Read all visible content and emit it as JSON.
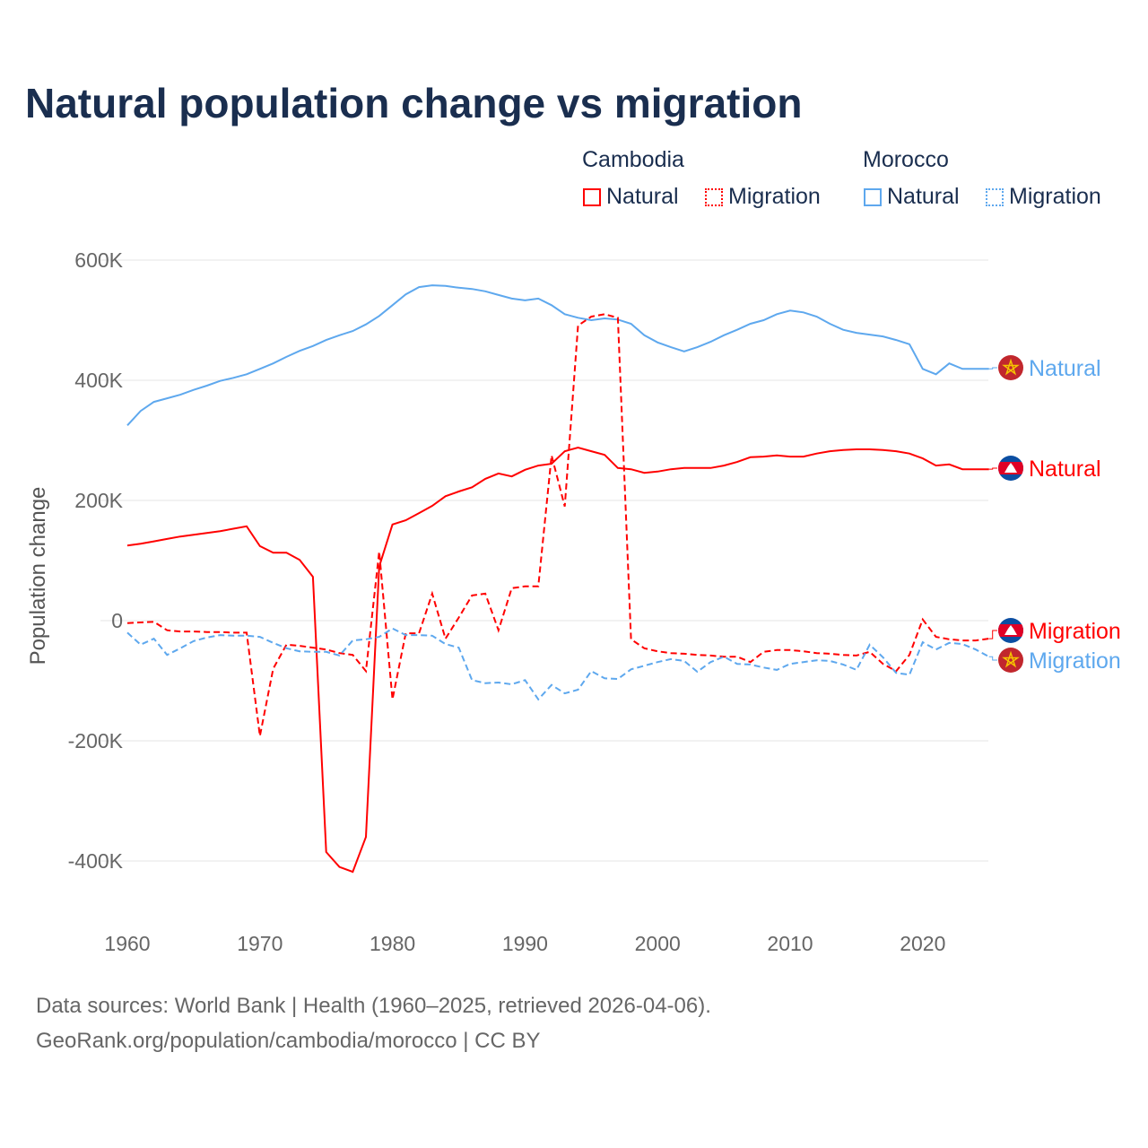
{
  "chart_data": {
    "type": "line",
    "title": "Natural population change vs migration",
    "ylabel": "Population change",
    "xlabel": "",
    "xlim": [
      1960,
      2025
    ],
    "ylim": [
      -500000,
      600000
    ],
    "yticks": [
      600000,
      400000,
      200000,
      0,
      -200000,
      -400000
    ],
    "ytick_labels": [
      "600K",
      "400K",
      "200K",
      "0",
      "-200K",
      "-400K"
    ],
    "xticks": [
      1960,
      1970,
      1980,
      1990,
      2000,
      2010,
      2020
    ],
    "xtick_labels": [
      "1960",
      "1970",
      "1980",
      "1990",
      "2000",
      "2010",
      "2020"
    ],
    "grid": true,
    "legend": {
      "placement": "top-right",
      "groups": [
        {
          "name": "Cambodia",
          "items": [
            "Natural",
            "Migration"
          ]
        },
        {
          "name": "Morocco",
          "items": [
            "Natural",
            "Migration"
          ]
        }
      ]
    },
    "x_start": 1960,
    "series_units": "thousands",
    "series": [
      {
        "name": "Morocco Natural",
        "country": "Morocco",
        "label": "Natural",
        "color": "#5ea8ee",
        "dash": "solid",
        "values": [
          325,
          349,
          364,
          370,
          376,
          384,
          391,
          399,
          404,
          410,
          419,
          428,
          439,
          449,
          457,
          467,
          475,
          482,
          493,
          507,
          525,
          543,
          555,
          558,
          557,
          554,
          552,
          548,
          542,
          536,
          533,
          536,
          525,
          510,
          504,
          500,
          503,
          501,
          494,
          475,
          463,
          455,
          448,
          455,
          464,
          475,
          484,
          494,
          500,
          510,
          516,
          513,
          506,
          494,
          484,
          479,
          476,
          473,
          467,
          460,
          419,
          410,
          428,
          419,
          419,
          419
        ]
      },
      {
        "name": "Cambodia Natural",
        "country": "Cambodia",
        "label": "Natural",
        "color": "#ff0000",
        "dash": "solid",
        "values": [
          125,
          128,
          132,
          136,
          140,
          143,
          146,
          149,
          153,
          157,
          124,
          113,
          113,
          101,
          73,
          -385,
          -410,
          -418,
          -360,
          90,
          160,
          167,
          179,
          191,
          207,
          215,
          222,
          236,
          245,
          240,
          251,
          258,
          261,
          282,
          288,
          282,
          276,
          254,
          252,
          246,
          248,
          252,
          254,
          254,
          254,
          258,
          264,
          272,
          273,
          275,
          273,
          273,
          278,
          282,
          284,
          285,
          285,
          284,
          282,
          278,
          270,
          258,
          260,
          252,
          252,
          252
        ]
      },
      {
        "name": "Cambodia Migration",
        "country": "Cambodia",
        "label": "Migration",
        "color": "#ff0000",
        "dash": "dashed",
        "values": [
          -4,
          -3,
          -2,
          -16,
          -18,
          -18,
          -19,
          -19,
          -20,
          -20,
          -192,
          -80,
          -40,
          -42,
          -45,
          -48,
          -54,
          -57,
          -84,
          115,
          -131,
          -21,
          -21,
          45,
          -30,
          5,
          42,
          45,
          -16,
          54,
          57,
          57,
          275,
          190,
          491,
          506,
          510,
          504,
          -31,
          -46,
          -51,
          -54,
          -55,
          -57,
          -58,
          -60,
          -60,
          -69,
          -52,
          -49,
          -49,
          -51,
          -54,
          -55,
          -57,
          -58,
          -52,
          -72,
          -84,
          -57,
          2,
          -27,
          -31,
          -33,
          -33,
          -30
        ]
      },
      {
        "name": "Morocco Migration",
        "country": "Morocco",
        "label": "Migration",
        "color": "#5ea8ee",
        "dash": "dashed",
        "values": [
          -20,
          -40,
          -30,
          -57,
          -46,
          -34,
          -28,
          -24,
          -25,
          -25,
          -27,
          -37,
          -46,
          -51,
          -52,
          -52,
          -58,
          -33,
          -31,
          -27,
          -13,
          -24,
          -24,
          -25,
          -39,
          -45,
          -99,
          -104,
          -103,
          -106,
          -99,
          -131,
          -107,
          -121,
          -115,
          -84,
          -96,
          -97,
          -81,
          -75,
          -69,
          -64,
          -67,
          -85,
          -69,
          -60,
          -72,
          -73,
          -78,
          -82,
          -72,
          -69,
          -66,
          -67,
          -73,
          -82,
          -40,
          -61,
          -87,
          -90,
          -36,
          -48,
          -37,
          -39,
          -48,
          -60
        ]
      }
    ]
  },
  "footer": {
    "line1": "Data sources: World Bank | Health (1960–2025, retrieved 2026-04-06).",
    "line2": "GeoRank.org/population/cambodia/morocco | CC BY"
  }
}
